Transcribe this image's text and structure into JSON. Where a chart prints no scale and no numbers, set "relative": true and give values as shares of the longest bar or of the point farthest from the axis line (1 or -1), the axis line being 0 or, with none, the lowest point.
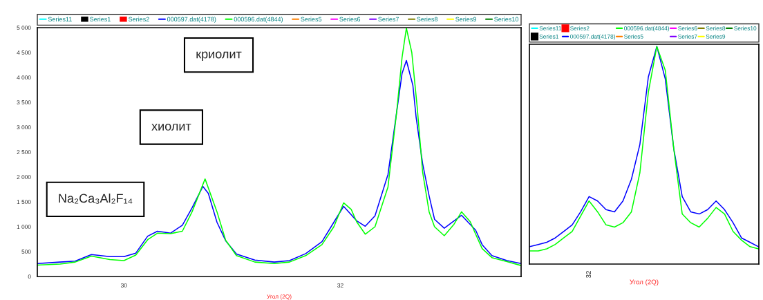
{
  "chart_data": [
    {
      "type": "line",
      "xlabel": "Угол (2Q)",
      "legend": "top",
      "xlim": [
        29.2,
        33.67
      ],
      "xticks": [
        30,
        32
      ],
      "ylim": [
        0,
        5000
      ],
      "yticks": [
        0,
        500,
        {
          "value": 1000,
          "label": "1 000"
        },
        {
          "value": 1500,
          "label": "1 500"
        },
        {
          "value": 2000,
          "label": "2 000"
        },
        {
          "value": 2500,
          "label": "2 500"
        },
        {
          "value": 3000,
          "label": "3 000"
        },
        {
          "value": 3500,
          "label": "3 500"
        },
        {
          "value": 4000,
          "label": "4 000"
        },
        {
          "value": 4500,
          "label": "4 500"
        },
        {
          "value": 5000,
          "label": "5 000"
        }
      ],
      "annotations": [
        "криолит",
        "хиолит",
        "Na₂Ca₃Al₂F₁₄"
      ],
      "series": [
        {
          "name": "Series11",
          "color": "#00ffff"
        },
        {
          "name": "Series1",
          "type": "bar",
          "color": "#000000"
        },
        {
          "name": "Series2",
          "type": "bar",
          "color": "#ff0000"
        },
        {
          "name": "000597.dat(4178)",
          "color": "#0000ff",
          "x": [
            29.2,
            29.41,
            29.55,
            29.7,
            29.87,
            30.0,
            30.11,
            30.22,
            30.31,
            30.43,
            30.54,
            30.63,
            30.73,
            30.78,
            30.86,
            30.94,
            31.04,
            31.21,
            31.39,
            31.53,
            31.68,
            31.83,
            31.94,
            32.03,
            32.15,
            32.23,
            32.32,
            32.44,
            32.525,
            32.57,
            32.61,
            32.67,
            32.7,
            32.76,
            32.82,
            32.87,
            32.96,
            33.12,
            33.25,
            33.31,
            33.4,
            33.54,
            33.67
          ],
          "values": [
            260,
            290,
            310,
            440,
            400,
            400,
            470,
            810,
            910,
            870,
            1030,
            1380,
            1810,
            1670,
            1090,
            720,
            450,
            330,
            290,
            320,
            460,
            700,
            1090,
            1410,
            1120,
            1010,
            1220,
            2050,
            3380,
            4080,
            4340,
            3840,
            3200,
            2270,
            1620,
            1150,
            970,
            1230,
            930,
            640,
            420,
            320,
            260
          ]
        },
        {
          "name": "000596.dat(4844)",
          "color": "#00ff00",
          "x": [
            29.2,
            29.41,
            29.55,
            29.7,
            29.87,
            30.0,
            30.11,
            30.22,
            30.31,
            30.43,
            30.54,
            30.63,
            30.75,
            30.86,
            30.94,
            31.04,
            31.21,
            31.39,
            31.53,
            31.68,
            31.83,
            31.94,
            32.03,
            32.1,
            32.15,
            32.23,
            32.32,
            32.44,
            32.52,
            32.57,
            32.61,
            32.66,
            32.71,
            32.76,
            32.82,
            32.87,
            32.96,
            33.05,
            33.12,
            33.2,
            33.25,
            33.31,
            33.4,
            33.54,
            33.67
          ],
          "values": [
            230,
            250,
            290,
            410,
            340,
            320,
            430,
            740,
            870,
            860,
            910,
            1300,
            1960,
            1300,
            730,
            420,
            290,
            260,
            290,
            420,
            640,
            1000,
            1480,
            1350,
            1100,
            850,
            1000,
            1800,
            3300,
            4400,
            4990,
            4500,
            3400,
            2100,
            1300,
            1000,
            820,
            1050,
            1300,
            1100,
            850,
            560,
            380,
            300,
            220
          ]
        },
        {
          "name": "Series5",
          "color": "#ff8000"
        },
        {
          "name": "Series6",
          "color": "#ff00ff"
        },
        {
          "name": "Series7",
          "color": "#8000ff"
        },
        {
          "name": "Series8",
          "color": "#808000"
        },
        {
          "name": "Series9",
          "color": "#ffff00"
        },
        {
          "name": "Series10",
          "color": "#008000"
        }
      ]
    },
    {
      "type": "line",
      "xlabel": "Угол (2Q)",
      "legend": "top",
      "relative": true,
      "categories": [
        null,
        null,
        null,
        null,
        null,
        null,
        null,
        null,
        null,
        null,
        null,
        null,
        null,
        null,
        null,
        null,
        null,
        null,
        null,
        null,
        null,
        null,
        null,
        null,
        null,
        null,
        null,
        null
      ],
      "annotations": [
        "32"
      ],
      "series": [
        {
          "name": "Series11",
          "color": "#00ffff",
          "values": [
            null,
            null,
            null,
            null,
            null,
            null,
            null,
            null,
            null,
            null,
            null,
            null,
            null,
            null,
            null,
            null,
            null,
            null,
            null,
            null,
            null,
            null,
            null,
            null,
            null,
            null,
            null,
            null
          ]
        },
        {
          "name": "Series1",
          "marker": "square",
          "color": "#000000",
          "values": [
            null,
            null,
            null,
            null,
            null,
            null,
            null,
            null,
            null,
            null,
            null,
            null,
            null,
            null,
            null,
            null,
            null,
            null,
            null,
            null,
            null,
            null,
            null,
            null,
            null,
            null,
            null,
            null
          ]
        },
        {
          "name": "Series2",
          "marker": "square",
          "color": "#ff0000",
          "values": [
            null,
            null,
            null,
            null,
            null,
            null,
            null,
            null,
            null,
            null,
            null,
            null,
            null,
            null,
            null,
            null,
            null,
            null,
            null,
            null,
            null,
            null,
            null,
            null,
            null,
            null,
            null,
            null
          ]
        },
        {
          "name": "000597.dat(4178)",
          "color": "#0000ff",
          "values": [
            0.08,
            0.09,
            0.1,
            0.12,
            0.15,
            0.18,
            0.24,
            0.31,
            0.29,
            0.25,
            0.24,
            0.29,
            0.39,
            0.55,
            0.86,
            1.0,
            0.85,
            0.53,
            0.31,
            0.24,
            0.23,
            0.25,
            0.29,
            0.25,
            0.19,
            0.12,
            0.1,
            0.08
          ]
        },
        {
          "name": "000596.dat(4844)",
          "color": "#00ff00",
          "values": [
            0.06,
            0.06,
            0.07,
            0.09,
            0.12,
            0.15,
            0.22,
            0.29,
            0.24,
            0.18,
            0.17,
            0.19,
            0.24,
            0.42,
            0.79,
            1.0,
            0.89,
            0.53,
            0.23,
            0.19,
            0.17,
            0.21,
            0.26,
            0.23,
            0.15,
            0.11,
            0.08,
            0.07
          ]
        },
        {
          "name": "Series5",
          "color": "#ff8000",
          "values": [
            null,
            null,
            null,
            null,
            null,
            null,
            null,
            null,
            null,
            null,
            null,
            null,
            null,
            null,
            null,
            null,
            null,
            null,
            null,
            null,
            null,
            null,
            null,
            null,
            null,
            null,
            null,
            null
          ]
        },
        {
          "name": "Series6",
          "color": "#ff00ff",
          "values": [
            null,
            null,
            null,
            null,
            null,
            null,
            null,
            null,
            null,
            null,
            null,
            null,
            null,
            null,
            null,
            null,
            null,
            null,
            null,
            null,
            null,
            null,
            null,
            null,
            null,
            null,
            null,
            null
          ]
        },
        {
          "name": "Series7",
          "color": "#8000ff",
          "values": [
            null,
            null,
            null,
            null,
            null,
            null,
            null,
            null,
            null,
            null,
            null,
            null,
            null,
            null,
            null,
            null,
            null,
            null,
            null,
            null,
            null,
            null,
            null,
            null,
            null,
            null,
            null,
            null
          ]
        },
        {
          "name": "Series8",
          "color": "#808000",
          "values": [
            null,
            null,
            null,
            null,
            null,
            null,
            null,
            null,
            null,
            null,
            null,
            null,
            null,
            null,
            null,
            null,
            null,
            null,
            null,
            null,
            null,
            null,
            null,
            null,
            null,
            null,
            null,
            null
          ]
        },
        {
          "name": "Series9",
          "color": "#ffff00",
          "values": [
            null,
            null,
            null,
            null,
            null,
            null,
            null,
            null,
            null,
            null,
            null,
            null,
            null,
            null,
            null,
            null,
            null,
            null,
            null,
            null,
            null,
            null,
            null,
            null,
            null,
            null,
            null,
            null
          ]
        },
        {
          "name": "Series10",
          "color": "#008000",
          "values": [
            null,
            null,
            null,
            null,
            null,
            null,
            null,
            null,
            null,
            null,
            null,
            null,
            null,
            null,
            null,
            null,
            null,
            null,
            null,
            null,
            null,
            null,
            null,
            null,
            null,
            null,
            null,
            null
          ]
        }
      ]
    }
  ]
}
